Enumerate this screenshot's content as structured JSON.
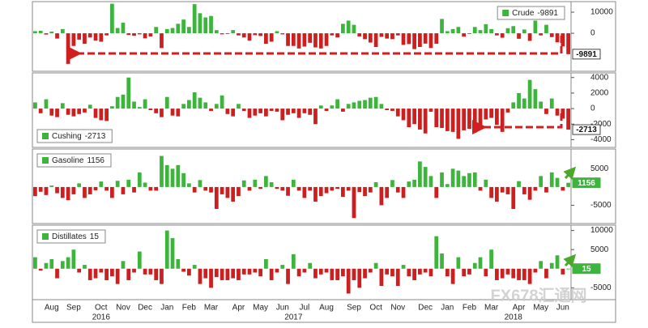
{
  "chart_data": [
    {
      "type": "bar",
      "series": [
        {
          "name": "Crude",
          "values": [
            1000,
            1200,
            -600,
            800,
            -2500,
            2000,
            -14500,
            -6000,
            -3000,
            -5000,
            -2000,
            -3500,
            -4000,
            -1000,
            14000,
            2500,
            5000,
            -800,
            -1200,
            -500,
            -2400,
            -1500,
            3000,
            -7000,
            2000,
            2500,
            4500,
            6500,
            3000,
            13800,
            9500,
            7500,
            8200,
            1500,
            -500,
            -250,
            1500,
            -1000,
            -2000,
            -3500,
            -900,
            -1300,
            -5000,
            -4000,
            1000,
            -500,
            -6000,
            -6000,
            -7200,
            -6300,
            -4500,
            -6700,
            -7200,
            -6000,
            -1000,
            -2000,
            4500,
            6000,
            4000,
            -1500,
            -2800,
            -4400,
            -6500,
            -1700,
            -2500,
            -2800,
            -1000,
            -5500,
            -5100,
            -7500,
            -6500,
            -4900,
            -7000,
            -5000,
            6800,
            1000,
            2000,
            3000,
            -1600,
            -300,
            3000,
            1500,
            4300,
            2000,
            -1000,
            -2100,
            2400,
            3400,
            -2600,
            1800,
            -3600,
            6000,
            -1000,
            4000,
            -1800,
            -4300,
            -6200,
            -9891
          ]
        }
      ],
      "ylim": [
        -18000,
        15000
      ],
      "yticks": [
        0,
        10000
      ],
      "legend_position": "upper right",
      "color_positive": "#3db53d",
      "color_negative": "#cc1f1f"
    },
    {
      "type": "bar",
      "series": [
        {
          "name": "Cushing",
          "values": [
            800,
            -600,
            1200,
            -900,
            -1100,
            700,
            -800,
            -1000,
            -700,
            -500,
            500,
            -1200,
            -1500,
            -1600,
            300,
            1500,
            1800,
            4000,
            900,
            200,
            1200,
            -200,
            -600,
            -1100,
            1500,
            -900,
            -1000,
            600,
            1100,
            2100,
            1400,
            800,
            -300,
            600,
            1700,
            -700,
            -1000,
            600,
            -300,
            -1200,
            -900,
            -600,
            -1000,
            -300,
            -400,
            -1500,
            -800,
            -600,
            -1200,
            -600,
            -800,
            -2000,
            400,
            -300,
            400,
            1200,
            -400,
            600,
            800,
            1000,
            1100,
            1400,
            1500,
            600,
            -200,
            -300,
            -1000,
            -1500,
            -2400,
            -2000,
            -2700,
            -3200,
            -400,
            -2400,
            -2500,
            -2900,
            -3000,
            -3900,
            -2800,
            -2600,
            -3100,
            -2300,
            -1400,
            -1200,
            -2100,
            -3000,
            -500,
            800,
            2000,
            1300,
            3700,
            2500,
            900,
            -700,
            1300,
            -900,
            -1300,
            -2713
          ]
        }
      ],
      "ylim": [
        -5000,
        4600
      ],
      "yticks": [
        -4000,
        -2000,
        0,
        2000,
        4000
      ],
      "legend_position": "lower left",
      "color_positive": "#3db53d",
      "color_negative": "#cc1f1f"
    },
    {
      "type": "bar",
      "series": [
        {
          "name": "Gasoline",
          "values": [
            -2500,
            -1300,
            -2200,
            400,
            -1700,
            -3000,
            -3600,
            -2000,
            1000,
            -3000,
            -2000,
            -900,
            1500,
            -1000,
            -3000,
            1700,
            -2000,
            2000,
            -1500,
            4000,
            1200,
            -1000,
            -1000,
            8500,
            6000,
            5000,
            6000,
            3800,
            1000,
            -1500,
            1900,
            -1000,
            -1500,
            -6000,
            -2000,
            -3000,
            -4000,
            -2500,
            1800,
            -1000,
            2000,
            -500,
            3000,
            1300,
            -500,
            -1000,
            -2400,
            2000,
            -1000,
            -3000,
            -1000,
            -4000,
            -2500,
            -1700,
            -1000,
            -500,
            -2700,
            -1000,
            -8500,
            -1400,
            -2500,
            -1500,
            1300,
            -5000,
            -3000,
            1900,
            -1500,
            -3000,
            1500,
            2000,
            7000,
            5500,
            3000,
            -3000,
            4000,
            800,
            5000,
            4500,
            3000,
            3800,
            4000,
            -1000,
            2000,
            -3000,
            -4000,
            -1500,
            -2000,
            -6000,
            1600,
            -2000,
            -3500,
            -1000,
            3000,
            -1500,
            4000,
            2500,
            -1000,
            1156
          ]
        }
      ],
      "ylim": [
        -10000,
        10400
      ],
      "yticks": [
        -5000,
        5000
      ],
      "legend_position": "upper left",
      "color_positive": "#3db53d",
      "color_negative": "#cc1f1f"
    },
    {
      "type": "bar",
      "series": [
        {
          "name": "Distillates",
          "values": [
            3000,
            -500,
            1500,
            2500,
            -2500,
            2000,
            3000,
            5000,
            -1000,
            1000,
            -3000,
            -2500,
            -1000,
            -3000,
            -2000,
            -4000,
            2000,
            -3000,
            -1000,
            4500,
            -1500,
            -1500,
            -3000,
            -4000,
            10000,
            8000,
            2500,
            -800,
            -1800,
            1000,
            -4000,
            -2500,
            -5000,
            -2200,
            -3000,
            -3000,
            -2500,
            -3000,
            -1500,
            -1500,
            -1000,
            -2000,
            2500,
            -3000,
            -1000,
            1000,
            -4000,
            3800,
            -2000,
            -1000,
            1500,
            -2500,
            -1500,
            -1000,
            -3000,
            -3000,
            -2000,
            -6500,
            -3000,
            -5000,
            -2500,
            -1000,
            1500,
            -4500,
            -1500,
            -2000,
            -4500,
            1000,
            -2000,
            -3000,
            -1500,
            -1000,
            -2000,
            8500,
            4000,
            -2000,
            -4000,
            3000,
            -2000,
            -1500,
            1500,
            3000,
            -2000,
            5000,
            -3000,
            -2500,
            -1500,
            -2500,
            -3000,
            -3000,
            -4000,
            -1000,
            2000,
            -2500,
            1500,
            3500,
            -1500,
            15
          ]
        }
      ],
      "ylim": [
        -8100,
        11400
      ],
      "yticks": [
        -5000,
        5000,
        10000
      ],
      "legend_position": "upper left",
      "color_positive": "#3db53d",
      "color_negative": "#cc1f1f"
    }
  ],
  "x_axis": {
    "categories": [
      null,
      null,
      null,
      "Aug",
      null,
      null,
      null,
      "Sep",
      null,
      null,
      null,
      null,
      "Oct",
      null,
      null,
      null,
      "Nov",
      null,
      null,
      null,
      "Dec",
      null,
      null,
      null,
      "Jan",
      null,
      null,
      null,
      "Feb",
      null,
      null,
      null,
      "Mar",
      null,
      null,
      null,
      null,
      "Apr",
      null,
      null,
      null,
      "May",
      null,
      null,
      null,
      "Jun",
      null,
      null,
      null,
      "Jul",
      null,
      null,
      null,
      "Aug",
      null,
      null,
      null,
      null,
      "Sep",
      null,
      null,
      null,
      "Oct",
      null,
      null,
      null,
      "Nov",
      null,
      null,
      null,
      null,
      "Dec",
      null,
      null,
      null,
      "Jan",
      null,
      null,
      null,
      "Feb",
      null,
      null,
      null,
      "Mar",
      null,
      null,
      null,
      null,
      "Apr",
      null,
      null,
      null,
      "May",
      null,
      null,
      null,
      "Jun",
      null
    ],
    "years": [
      null,
      null,
      null,
      null,
      null,
      null,
      null,
      null,
      null,
      null,
      null,
      null,
      "2016",
      null,
      null,
      null,
      null,
      null,
      null,
      null,
      null,
      null,
      null,
      null,
      null,
      null,
      null,
      null,
      null,
      null,
      null,
      null,
      null,
      null,
      null,
      null,
      null,
      null,
      null,
      null,
      null,
      null,
      null,
      null,
      null,
      null,
      null,
      "2017",
      null,
      null,
      null,
      null,
      null,
      null,
      null,
      null,
      null,
      null,
      null,
      null,
      null,
      null,
      null,
      null,
      null,
      null,
      null,
      null,
      null,
      null,
      null,
      null,
      null,
      null,
      null,
      null,
      null,
      null,
      null,
      null,
      null,
      null,
      null,
      null,
      null,
      null,
      null,
      "2018",
      null,
      null,
      null,
      null,
      null,
      null,
      null,
      null,
      null,
      null
    ]
  },
  "watermark": "FX678汇通网"
}
